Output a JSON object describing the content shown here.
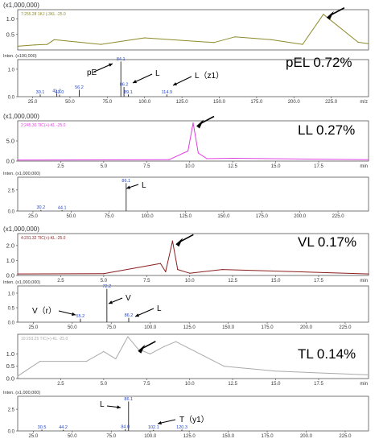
{
  "chart_data": [
    {
      "type": "line",
      "panel": "chromatogram",
      "scale_label": "(x1,000,000)",
      "trace_label": "7:255.28 1KJ  (-3KL -25.0",
      "trace_color": "#8d8a2a",
      "yticks": [
        "0.5",
        "1.0"
      ],
      "xticks": [],
      "xlim": [
        0,
        20.2
      ],
      "ylim": [
        0,
        1.3
      ],
      "series": [
        {
          "x": [
            0.0,
            1.0,
            1.7,
            2.1,
            4.8,
            7.3,
            11.3,
            12.5,
            14.6,
            16.4,
            17.6,
            19.6,
            20.2
          ],
          "y": [
            0.12,
            0.16,
            0.18,
            0.33,
            0.18,
            0.39,
            0.24,
            0.42,
            0.33,
            0.18,
            1.15,
            0.25,
            0.2
          ]
        }
      ],
      "annotation": "pEL 0.72%",
      "arrow_at": [
        17.6,
        1.15
      ]
    },
    {
      "type": "bar",
      "panel": "mass spectrum",
      "scale_label": "Inten. (x100,000)",
      "yticks": [
        "0.0",
        "1.0"
      ],
      "xticks": [
        "25.0",
        "50.0",
        "75.0",
        "100.0",
        "125.0",
        "150.0",
        "175.0",
        "200.0",
        "225.0"
      ],
      "xunit": "m/z",
      "xlim": [
        15,
        250
      ],
      "ylim": [
        0,
        1.35
      ],
      "peaks": [
        {
          "x": 30.1,
          "y": 0.08,
          "label": "30.1"
        },
        {
          "x": 41.2,
          "y": 0.12,
          "label": "41.2"
        },
        {
          "x": 43.0,
          "y": 0.07,
          "label": "43.0"
        },
        {
          "x": 56.2,
          "y": 0.25,
          "label": "56.2"
        },
        {
          "x": 84.1,
          "y": 1.28,
          "label": "84.1"
        },
        {
          "x": 86.2,
          "y": 0.35,
          "label": "86.2"
        },
        {
          "x": 89.1,
          "y": 0.08,
          "label": "89.1"
        },
        {
          "x": 114.9,
          "y": 0.08,
          "label": "114.9"
        }
      ],
      "annotations": [
        "pE",
        "L",
        "L（z1）"
      ]
    },
    {
      "type": "line",
      "panel": "chromatogram",
      "scale_label": "(x1,000,000)",
      "trace_label": "2:245.30 TIC(+)-KL -25.0",
      "trace_color": "#e040e0",
      "yticks": [
        "0.0",
        "5.0"
      ],
      "xticks": [
        "2.5",
        "5.0",
        "7.5",
        "10.0",
        "12.5",
        "15.0",
        "17.5"
      ],
      "xunit": "min",
      "xlim": [
        0,
        20.4
      ],
      "ylim": [
        0,
        10
      ],
      "series": [
        {
          "x": [
            0.0,
            5.0,
            8.8,
            9.9,
            10.2,
            10.5,
            11.0,
            12.5,
            20.4
          ],
          "y": [
            0.25,
            0.3,
            0.35,
            2.5,
            9.5,
            2.0,
            0.6,
            0.7,
            0.35
          ]
        }
      ],
      "annotation": "LL 0.27%",
      "arrow_at": [
        10.2,
        9.5
      ]
    },
    {
      "type": "bar",
      "panel": "mass spectrum",
      "scale_label": "Inten. (x1,000,000)",
      "yticks": [
        "0.0",
        "2.5"
      ],
      "xticks": [
        "25.0",
        "50.0",
        "75.0",
        "100.0",
        "125.0",
        "150.0",
        "175.0",
        "200.0",
        "225.0"
      ],
      "xlim": [
        15,
        245
      ],
      "ylim": [
        0,
        4.0
      ],
      "peaks": [
        {
          "x": 30.2,
          "y": 0.12,
          "label": "30.2"
        },
        {
          "x": 44.1,
          "y": 0.1,
          "label": "44.1"
        },
        {
          "x": 86.1,
          "y": 3.3,
          "label": "86.1"
        }
      ],
      "annotations": [
        "L"
      ]
    },
    {
      "type": "line",
      "panel": "chromatogram",
      "scale_label": "(x1,000,000)",
      "trace_label": "4:231.32 TIC(+)-KL -25.0",
      "trace_color": "#8b1e1e",
      "yticks": [
        "0.0",
        "1.0",
        "2.0"
      ],
      "xticks": [
        "2.5",
        "5.0",
        "7.5",
        "10.0",
        "12.5",
        "15.0",
        "17.5"
      ],
      "xunit": "min",
      "xlim": [
        0,
        20.4
      ],
      "ylim": [
        0,
        2.8
      ],
      "series": [
        {
          "x": [
            0.0,
            5.0,
            8.3,
            8.6,
            9.0,
            9.3,
            10.0,
            11.9,
            20.4
          ],
          "y": [
            0.1,
            0.12,
            0.8,
            0.25,
            2.3,
            0.4,
            0.15,
            0.4,
            0.1
          ]
        }
      ],
      "annotation": "VL 0.17%",
      "arrow_at": [
        9.0,
        2.3
      ]
    },
    {
      "type": "bar",
      "panel": "mass spectrum",
      "scale_label": "Inten. (x1,000,000)",
      "yticks": [
        "0.0",
        "0.5",
        "1.0"
      ],
      "xticks": [
        "25.0",
        "50.0",
        "75.0",
        "100.0",
        "125.0",
        "150.0",
        "175.0",
        "200.0",
        "225.0"
      ],
      "xlim": [
        15,
        240
      ],
      "ylim": [
        0,
        1.25
      ],
      "peaks": [
        {
          "x": 55.2,
          "y": 0.12,
          "label": "55.2"
        },
        {
          "x": 72.2,
          "y": 1.15,
          "label": "72.2"
        },
        {
          "x": 86.2,
          "y": 0.15,
          "label": "86.2"
        }
      ],
      "annotations": [
        "V（r）",
        "V",
        "L"
      ]
    },
    {
      "type": "line",
      "panel": "chromatogram",
      "scale_label": "",
      "trace_label": "10:203.25 TIC(+)-KL -25.0",
      "trace_color": "#aaaaaa",
      "yticks": [
        "0.0",
        "0.5",
        "1.0"
      ],
      "xticks": [
        "2.5",
        "5.0",
        "7.5",
        "10.0",
        "12.5",
        "15.0",
        "17.5"
      ],
      "xunit": "min",
      "xlim": [
        0,
        20.4
      ],
      "ylim": [
        0,
        1.8
      ],
      "series": [
        {
          "x": [
            0.0,
            1.3,
            4.0,
            5.0,
            5.7,
            6.4,
            7.0,
            7.7,
            8.5,
            9.2,
            12.0,
            15.0,
            20.4
          ],
          "y": [
            0.1,
            0.7,
            0.7,
            1.1,
            0.8,
            1.7,
            1.2,
            1.0,
            1.3,
            1.5,
            0.5,
            0.3,
            0.15
          ]
        }
      ],
      "annotation": "TL 0.14%",
      "arrow_at": [
        6.8,
        1.25
      ]
    },
    {
      "type": "bar",
      "panel": "mass spectrum",
      "scale_label": "Inten. (x1,000,000)",
      "yticks": [
        "0.0",
        "2.5"
      ],
      "xticks": [
        "25.0",
        "50.0",
        "75.0",
        "100.0",
        "125.0",
        "150.0",
        "175.0",
        "200.0",
        "225.0"
      ],
      "xlim": [
        15,
        240
      ],
      "ylim": [
        0,
        4.0
      ],
      "peaks": [
        {
          "x": 30.5,
          "y": 0.15,
          "label": "30.5"
        },
        {
          "x": 44.2,
          "y": 0.12,
          "label": "44.2"
        },
        {
          "x": 84.0,
          "y": 0.2,
          "label": "84.0"
        },
        {
          "x": 86.1,
          "y": 3.4,
          "label": "86.1"
        },
        {
          "x": 102.1,
          "y": 0.12,
          "label": "102.1"
        },
        {
          "x": 120.3,
          "y": 0.15,
          "label": "120.3"
        }
      ],
      "annotations": [
        "L",
        "T（y1）"
      ]
    }
  ]
}
